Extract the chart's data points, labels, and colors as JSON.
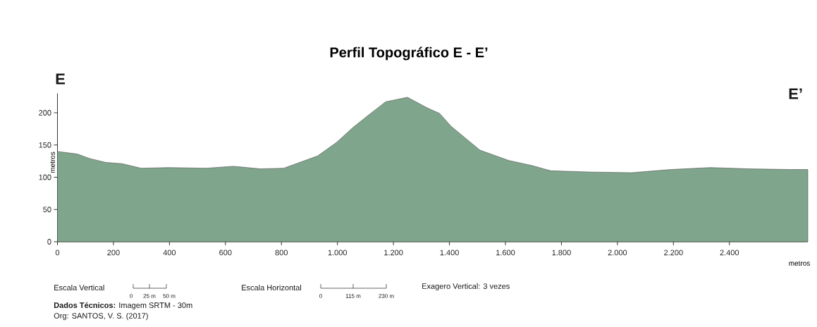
{
  "chart_data": {
    "type": "area",
    "title": "Perfil Topográfico E - E’",
    "xlabel": "metros",
    "ylabel": "metros",
    "x": [
      0,
      71,
      115,
      173,
      231,
      299,
      396,
      531,
      629,
      725,
      808,
      929,
      997,
      1055,
      1104,
      1172,
      1250,
      1323,
      1365,
      1406,
      1509,
      1612,
      1696,
      1762,
      1910,
      2051,
      2191,
      2332,
      2472,
      2617,
      2680
    ],
    "series": [
      {
        "color": "#7fa68c",
        "values": [
          140,
          136,
          129,
          123,
          121,
          114,
          115,
          114,
          117,
          113,
          114,
          133,
          154,
          177,
          194,
          217,
          224,
          207,
          199,
          179,
          142,
          126,
          118,
          110,
          108,
          107,
          112,
          115,
          113,
          112,
          112
        ]
      }
    ],
    "xlim": [
      0,
      2680
    ],
    "ylim": [
      0,
      230
    ],
    "xticks": [
      0,
      200,
      400,
      600,
      800,
      {
        "value": 1000,
        "label": "1.000"
      },
      {
        "value": 1200,
        "label": "1.200"
      },
      {
        "value": 1400,
        "label": "1.400"
      },
      {
        "value": 1600,
        "label": "1.600"
      },
      {
        "value": 1800,
        "label": "1.800"
      },
      {
        "value": 2000,
        "label": "2.000"
      },
      {
        "value": 2200,
        "label": "2.200"
      },
      {
        "value": 2400,
        "label": "2.400"
      }
    ],
    "yticks": [
      0,
      50,
      100,
      150,
      200
    ],
    "annotations": [
      "E",
      "E’",
      "Escala Vertical",
      "0",
      "25 m",
      "50 m",
      "Escala Horizontal",
      "0",
      "115 m",
      "230 m",
      "Exagero Vertical: 3 vezes",
      "**Dados Técnicos:** Imagem SRTM - 30m",
      "Org: SANTOS, V. S. (2017)"
    ]
  }
}
